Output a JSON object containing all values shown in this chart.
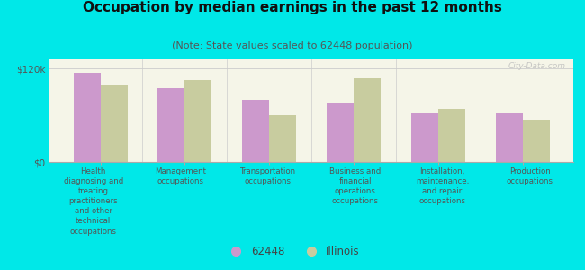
{
  "title": "Occupation by median earnings in the past 12 months",
  "subtitle": "(Note: State values scaled to 62448 population)",
  "categories": [
    "Health\ndiagnosing and\ntreating\npractitioners\nand other\ntechnical\noccupations",
    "Management\noccupations",
    "Transportation\noccupations",
    "Business and\nfinancial\noperations\noccupations",
    "Installation,\nmaintenance,\nand repair\noccupations",
    "Production\noccupations"
  ],
  "values_62448": [
    115000,
    95000,
    80000,
    75000,
    63000,
    62000
  ],
  "values_illinois": [
    98000,
    105000,
    60000,
    108000,
    68000,
    55000
  ],
  "color_62448": "#cc99cc",
  "color_illinois": "#c8cc9f",
  "ylim": [
    0,
    132000
  ],
  "yticks": [
    0,
    120000
  ],
  "ytick_labels": [
    "$0",
    "$120k"
  ],
  "background_color": "#00e8e8",
  "plot_bg_top": "#f5f5e8",
  "plot_bg_bottom": "#e8f0d8",
  "legend_label_62448": "62448",
  "legend_label_illinois": "Illinois",
  "title_fontsize": 11,
  "subtitle_fontsize": 8,
  "watermark": "City-Data.com"
}
